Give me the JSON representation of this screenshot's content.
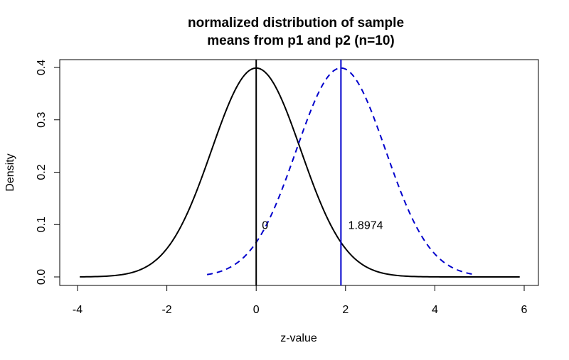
{
  "chart_data": {
    "type": "line",
    "title_lines": [
      "normalized distribution of sample",
      "means from p1 and p2 (n=10)"
    ],
    "xlabel": "z-value",
    "ylabel": "Density",
    "xlim": [
      -4,
      6
    ],
    "ylim": [
      0,
      0.4
    ],
    "x_ticks": [
      "-4",
      "-2",
      "0",
      "2",
      "4",
      "6"
    ],
    "y_ticks": [
      "0.0",
      "0.1",
      "0.2",
      "0.3",
      "0.4"
    ],
    "series": [
      {
        "curve": "normal",
        "mean": 0,
        "sd": 1,
        "x_range": [
          -3.95,
          5.9
        ],
        "color": "#000000",
        "line_style": "solid"
      },
      {
        "curve": "normal",
        "mean": 1.8974,
        "sd": 1,
        "x_range": [
          -1.1,
          4.85
        ],
        "color": "#0000cc",
        "line_style": "dashed"
      }
    ],
    "vertical_lines": [
      {
        "x": 0,
        "color": "#000000"
      },
      {
        "x": 1.8974,
        "color": "#0000cc"
      }
    ],
    "annotations": [
      {
        "text": "0",
        "x": 0.2,
        "y": 0.1
      },
      {
        "text": "1.8974",
        "x": 2.45,
        "y": 0.1
      }
    ]
  }
}
